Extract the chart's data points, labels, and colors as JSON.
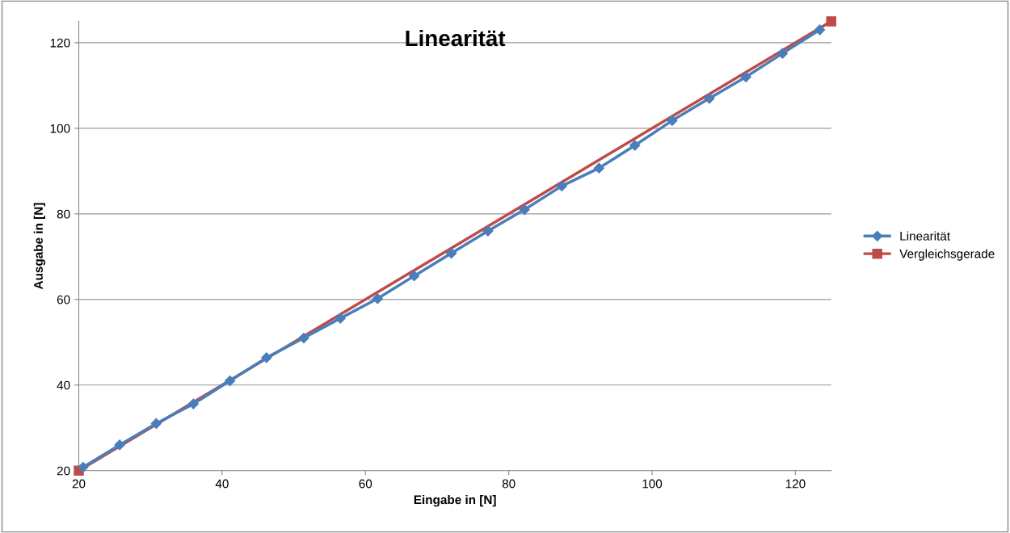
{
  "chart_data": {
    "type": "line",
    "title": "Linearität",
    "xlabel": "Eingabe in [N]",
    "ylabel": "Ausgabe in [N]",
    "xlim": [
      20,
      125
    ],
    "xticks": [
      20,
      40,
      60,
      80,
      100,
      120
    ],
    "ylim": [
      20,
      125
    ],
    "yticks": [
      20,
      40,
      60,
      80,
      100,
      120
    ],
    "grid": "y",
    "legend": "right",
    "series": [
      {
        "name": "Linearität",
        "color": "#4a7ebb",
        "marker": "diamond",
        "x": [
          20.6,
          25.7,
          30.8,
          36.0,
          41.1,
          46.2,
          51.4,
          56.5,
          61.7,
          66.8,
          72.0,
          77.1,
          82.2,
          87.4,
          92.6,
          97.6,
          102.8,
          108.0,
          113.1,
          118.2,
          123.4
        ],
        "values": [
          20.8,
          26,
          31,
          35.6,
          41,
          46.4,
          51,
          55.6,
          60.2,
          65.5,
          70.8,
          76,
          81,
          86.5,
          90.7,
          96,
          101.8,
          107,
          112,
          117.5,
          123
        ]
      },
      {
        "name": "Vergleichsgerade",
        "color": "#be4b48",
        "marker": "square",
        "x": [
          20,
          125
        ],
        "values": [
          20,
          125
        ]
      }
    ]
  }
}
